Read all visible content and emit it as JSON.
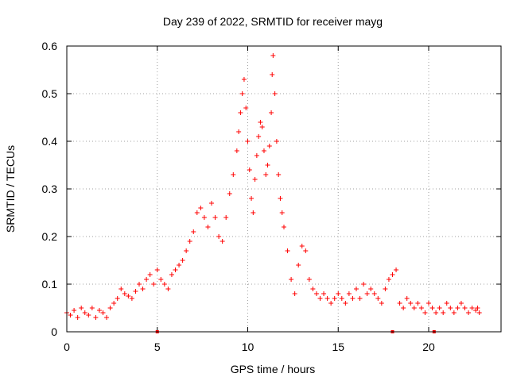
{
  "chart_data": {
    "type": "scatter",
    "title": "Day 239 of 2022, SRMTID for receiver mayg",
    "xlabel": "GPS time / hours",
    "ylabel": "SRMTID / TECUs",
    "xlim": [
      0,
      24
    ],
    "ylim": [
      0,
      0.6
    ],
    "x_ticks": [
      0,
      5,
      10,
      15,
      20
    ],
    "x_tick_labels": [
      "0",
      "5",
      "10",
      "15",
      "20"
    ],
    "y_ticks": [
      0,
      0.1,
      0.2,
      0.3,
      0.4,
      0.5,
      0.6
    ],
    "y_tick_labels": [
      "0",
      "0.1",
      "0.2",
      "0.3",
      "0.4",
      "0.5",
      "0.6"
    ],
    "grid": true,
    "marker": "+",
    "colors": {
      "series": "#ff0000",
      "axis": "#000000",
      "grid": "#a0a0a0"
    },
    "series": [
      {
        "name": "SRMTID",
        "points": [
          [
            0.0,
            0.04
          ],
          [
            0.2,
            0.035
          ],
          [
            0.4,
            0.045
          ],
          [
            0.6,
            0.03
          ],
          [
            0.8,
            0.05
          ],
          [
            1.0,
            0.04
          ],
          [
            1.2,
            0.035
          ],
          [
            1.4,
            0.05
          ],
          [
            1.6,
            0.03
          ],
          [
            1.8,
            0.045
          ],
          [
            2.0,
            0.04
          ],
          [
            2.2,
            0.03
          ],
          [
            2.4,
            0.05
          ],
          [
            2.6,
            0.06
          ],
          [
            2.8,
            0.07
          ],
          [
            3.0,
            0.09
          ],
          [
            3.2,
            0.08
          ],
          [
            3.4,
            0.075
          ],
          [
            3.6,
            0.07
          ],
          [
            3.8,
            0.085
          ],
          [
            4.0,
            0.1
          ],
          [
            4.2,
            0.09
          ],
          [
            4.4,
            0.11
          ],
          [
            4.6,
            0.12
          ],
          [
            4.8,
            0.1
          ],
          [
            5.0,
            0.13
          ],
          [
            5.2,
            0.11
          ],
          [
            5.4,
            0.1
          ],
          [
            5.6,
            0.09
          ],
          [
            5.8,
            0.12
          ],
          [
            6.0,
            0.13
          ],
          [
            6.2,
            0.14
          ],
          [
            6.4,
            0.15
          ],
          [
            6.6,
            0.17
          ],
          [
            6.8,
            0.19
          ],
          [
            7.0,
            0.21
          ],
          [
            7.2,
            0.25
          ],
          [
            7.4,
            0.26
          ],
          [
            7.6,
            0.24
          ],
          [
            7.8,
            0.22
          ],
          [
            8.0,
            0.27
          ],
          [
            8.2,
            0.24
          ],
          [
            8.4,
            0.2
          ],
          [
            8.6,
            0.19
          ],
          [
            8.8,
            0.24
          ],
          [
            9.0,
            0.29
          ],
          [
            9.2,
            0.33
          ],
          [
            9.4,
            0.38
          ],
          [
            9.5,
            0.42
          ],
          [
            9.6,
            0.46
          ],
          [
            9.7,
            0.5
          ],
          [
            9.8,
            0.53
          ],
          [
            9.9,
            0.47
          ],
          [
            10.0,
            0.4
          ],
          [
            10.1,
            0.34
          ],
          [
            10.2,
            0.28
          ],
          [
            10.3,
            0.25
          ],
          [
            10.4,
            0.32
          ],
          [
            10.5,
            0.37
          ],
          [
            10.6,
            0.41
          ],
          [
            10.7,
            0.44
          ],
          [
            10.8,
            0.43
          ],
          [
            10.9,
            0.38
          ],
          [
            11.0,
            0.33
          ],
          [
            11.1,
            0.35
          ],
          [
            11.2,
            0.39
          ],
          [
            11.3,
            0.46
          ],
          [
            11.35,
            0.54
          ],
          [
            11.4,
            0.58
          ],
          [
            11.5,
            0.5
          ],
          [
            11.6,
            0.4
          ],
          [
            11.7,
            0.33
          ],
          [
            11.8,
            0.28
          ],
          [
            11.9,
            0.25
          ],
          [
            12.0,
            0.22
          ],
          [
            12.2,
            0.17
          ],
          [
            12.4,
            0.11
          ],
          [
            12.6,
            0.08
          ],
          [
            12.8,
            0.14
          ],
          [
            13.0,
            0.18
          ],
          [
            13.2,
            0.17
          ],
          [
            13.4,
            0.11
          ],
          [
            13.6,
            0.09
          ],
          [
            13.8,
            0.08
          ],
          [
            14.0,
            0.07
          ],
          [
            14.2,
            0.08
          ],
          [
            14.4,
            0.07
          ],
          [
            14.6,
            0.06
          ],
          [
            14.8,
            0.07
          ],
          [
            15.0,
            0.08
          ],
          [
            15.2,
            0.07
          ],
          [
            15.4,
            0.06
          ],
          [
            15.6,
            0.08
          ],
          [
            15.8,
            0.07
          ],
          [
            16.0,
            0.09
          ],
          [
            16.2,
            0.07
          ],
          [
            16.4,
            0.1
          ],
          [
            16.6,
            0.08
          ],
          [
            16.8,
            0.09
          ],
          [
            17.0,
            0.08
          ],
          [
            17.2,
            0.07
          ],
          [
            17.4,
            0.06
          ],
          [
            17.6,
            0.09
          ],
          [
            17.8,
            0.11
          ],
          [
            18.0,
            0.12
          ],
          [
            18.2,
            0.13
          ],
          [
            18.4,
            0.06
          ],
          [
            18.6,
            0.05
          ],
          [
            18.8,
            0.07
          ],
          [
            19.0,
            0.06
          ],
          [
            19.2,
            0.05
          ],
          [
            19.4,
            0.06
          ],
          [
            19.6,
            0.05
          ],
          [
            19.8,
            0.04
          ],
          [
            20.0,
            0.06
          ],
          [
            20.2,
            0.05
          ],
          [
            20.4,
            0.04
          ],
          [
            20.6,
            0.05
          ],
          [
            20.8,
            0.04
          ],
          [
            21.0,
            0.06
          ],
          [
            21.2,
            0.05
          ],
          [
            21.4,
            0.04
          ],
          [
            21.6,
            0.05
          ],
          [
            21.8,
            0.06
          ],
          [
            22.0,
            0.05
          ],
          [
            22.2,
            0.04
          ],
          [
            22.4,
            0.05
          ],
          [
            22.6,
            0.045
          ],
          [
            22.7,
            0.05
          ],
          [
            22.8,
            0.04
          ]
        ]
      }
    ],
    "axis_markers": [
      5.0,
      18.0,
      20.3
    ]
  }
}
